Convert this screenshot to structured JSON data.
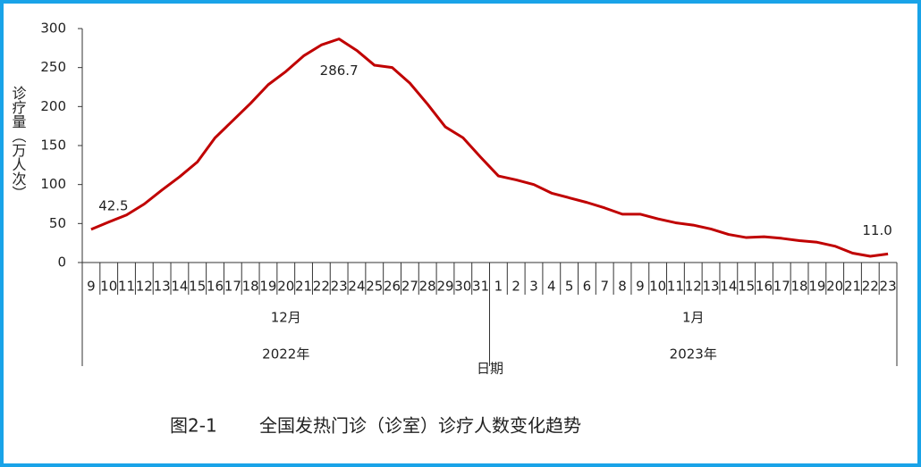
{
  "chart_data": {
    "type": "line",
    "y_label": "诊疗量（万人次）",
    "x_label": "日期",
    "figure_number": "图2-1",
    "title": "全国发热门诊（诊室）诊疗人数变化趋势",
    "categories": [
      "9",
      "10",
      "11",
      "12",
      "13",
      "14",
      "15",
      "16",
      "17",
      "18",
      "19",
      "20",
      "21",
      "22",
      "23",
      "24",
      "25",
      "26",
      "27",
      "28",
      "29",
      "30",
      "31",
      "1",
      "2",
      "3",
      "4",
      "5",
      "6",
      "7",
      "8",
      "9",
      "10",
      "11",
      "12",
      "13",
      "14",
      "15",
      "16",
      "17",
      "18",
      "19",
      "20",
      "21",
      "22",
      "23"
    ],
    "groups": [
      {
        "month": "12月",
        "year": "2022年"
      },
      {
        "month": "1月",
        "year": "2023年"
      }
    ],
    "series": [
      {
        "name": "诊疗量",
        "color": "#c00000",
        "values": [
          42.5,
          52,
          61,
          75,
          93,
          110,
          129,
          160,
          182,
          204,
          228,
          245,
          265,
          279,
          286.7,
          272,
          253,
          250,
          230,
          203,
          174,
          160,
          135,
          111,
          106,
          100,
          89,
          83,
          77,
          70,
          62,
          62,
          56,
          51,
          48,
          43,
          36,
          32,
          33,
          31,
          28,
          26,
          21,
          12,
          8,
          11.0
        ],
        "value_labels": [
          "42.5",
          null,
          null,
          null,
          null,
          null,
          null,
          null,
          null,
          null,
          null,
          null,
          null,
          null,
          "286.7",
          null,
          null,
          null,
          null,
          null,
          null,
          null,
          null,
          null,
          null,
          null,
          null,
          null,
          null,
          null,
          null,
          null,
          null,
          null,
          null,
          null,
          null,
          null,
          null,
          null,
          null,
          null,
          null,
          null,
          null,
          "11.0"
        ]
      }
    ],
    "ylim": [
      0,
      300
    ],
    "yticks": [
      0,
      50,
      100,
      150,
      200,
      250,
      300
    ],
    "grid": false
  }
}
